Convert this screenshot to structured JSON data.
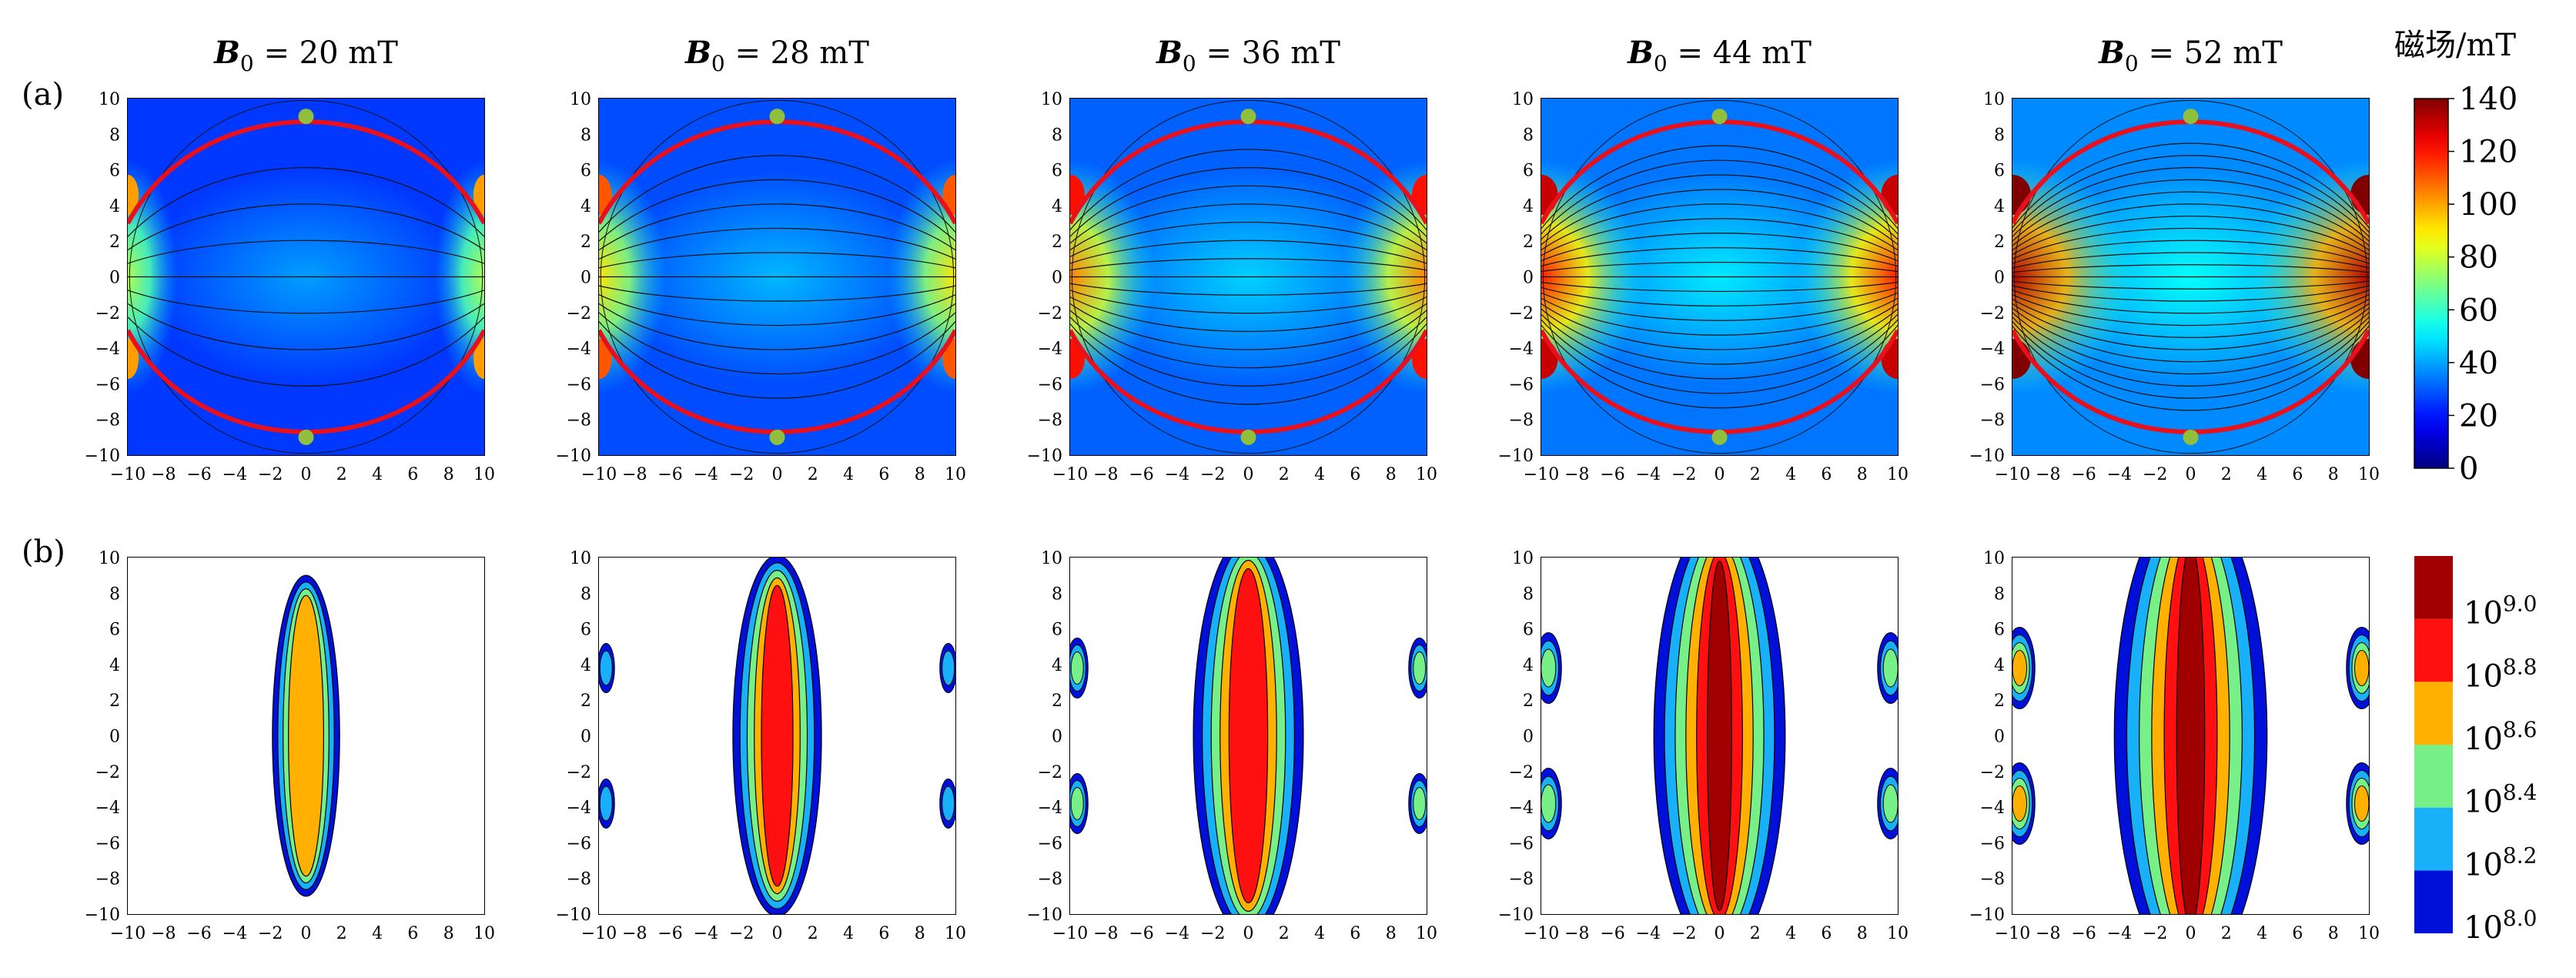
{
  "chart_data": {
    "type": "heatmap",
    "panel_labels": [
      "(a)",
      "(b)"
    ],
    "columns": [
      {
        "B0_mT": 20,
        "title_prefix": "B",
        "title_sub": "0",
        "title_rest": " = 20 mT"
      },
      {
        "B0_mT": 28,
        "title_prefix": "B",
        "title_sub": "0",
        "title_rest": " = 28 mT"
      },
      {
        "B0_mT": 36,
        "title_prefix": "B",
        "title_sub": "0",
        "title_rest": " = 36 mT"
      },
      {
        "B0_mT": 44,
        "title_prefix": "B",
        "title_sub": "0",
        "title_rest": " = 44 mT"
      },
      {
        "B0_mT": 52,
        "title_prefix": "B",
        "title_sub": "0",
        "title_rest": " = 52 mT"
      }
    ],
    "x_range": [
      -10,
      10
    ],
    "y_range": [
      -10,
      10
    ],
    "x_ticks": [
      -10,
      -8,
      -6,
      -4,
      -2,
      0,
      2,
      4,
      6,
      8,
      10
    ],
    "y_ticks": [
      -10,
      -8,
      -6,
      -4,
      -2,
      0,
      2,
      4,
      6,
      8,
      10
    ],
    "row_a": {
      "description": "magnetic field magnitude maps with field lines",
      "separatrix_color": "#e8101c",
      "marker_color": "#8fbf3c",
      "markers": [
        {
          "x": 0,
          "y": 9
        },
        {
          "x": 0,
          "y": -9
        }
      ],
      "separatrix": {
        "y_at_center": 9,
        "y_at_edge": 3
      },
      "colorbar": {
        "title": "磁场/mT",
        "ticks": [
          0,
          20,
          40,
          60,
          80,
          100,
          120,
          140
        ],
        "range": [
          0,
          140
        ],
        "colormap": "jet"
      }
    },
    "row_b": {
      "description": "particle density contours (log scale)",
      "levels": [
        "10^8.0",
        "10^8.2",
        "10^8.4",
        "10^8.6",
        "10^8.8",
        "10^9.0"
      ],
      "colorbar_labels": [
        {
          "base": "10",
          "exp": "9.0"
        },
        {
          "base": "10",
          "exp": "8.8"
        },
        {
          "base": "10",
          "exp": "8.6"
        },
        {
          "base": "10",
          "exp": "8.4"
        },
        {
          "base": "10",
          "exp": "8.2"
        },
        {
          "base": "10",
          "exp": "8.0"
        }
      ],
      "level_colors": [
        "#0010d8",
        "#18b0f8",
        "#78f088",
        "#ffb000",
        "#ff1010",
        "#a00000"
      ]
    }
  }
}
